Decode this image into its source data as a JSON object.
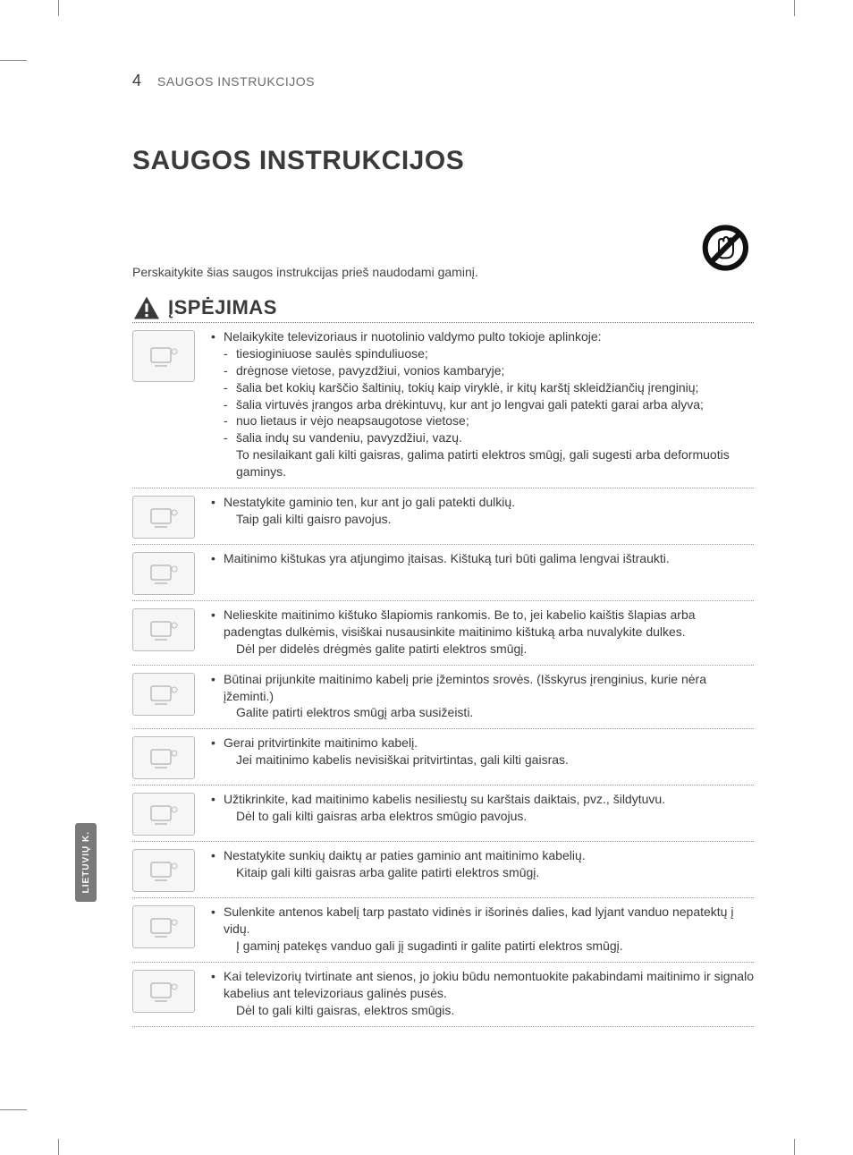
{
  "page_number": "4",
  "running_title": "SAUGOS INSTRUKCIJOS",
  "heading": "SAUGOS INSTRUKCIJOS",
  "intro": "Perskaitykite šias saugos instrukcijas prieš naudodami gaminį.",
  "warning_heading": "ĮSPĖJIMAS",
  "side_tab": "LIETUVIŲ K.",
  "colors": {
    "text": "#3a3a3a",
    "muted": "#6b6b6b",
    "dotted_rule": "#999999",
    "tab_bg": "#7a7a7a",
    "tab_text": "#ffffff",
    "background": "#ffffff"
  },
  "typography": {
    "h1_size_pt": 22,
    "h2_size_pt": 16,
    "body_size_pt": 10.5,
    "font_family": "Arial"
  },
  "items": [
    {
      "lead": "Nelaikykite televizoriaus ir nuotolinio valdymo pulto tokioje aplinkoje:",
      "sub": [
        "tiesioginiuose saulės spinduliuose;",
        "drėgnose vietose, pavyzdžiui, vonios kambaryje;",
        "šalia bet kokių karščio šaltinių, tokių kaip viryklė, ir kitų karštį skleidžiančių įrenginių;",
        "šalia virtuvės įrangos arba drėkintuvų, kur ant jo lengvai gali patekti garai arba alyva;",
        "nuo lietaus ir vėjo neapsaugotose vietose;",
        "šalia indų su vandeniu, pavyzdžiui, vazų."
      ],
      "tail": "To nesilaikant gali kilti gaisras, galima patirti elektros smūgį, gali sugesti arba deformuotis gaminys."
    },
    {
      "lead": "Nestatykite gaminio ten, kur ant jo gali patekti dulkių.",
      "tail": "Taip gali kilti gaisro pavojus."
    },
    {
      "lead": "Maitinimo kištukas yra atjungimo įtaisas. Kištuką turi būti galima lengvai ištraukti."
    },
    {
      "lead": "Nelieskite maitinimo kištuko šlapiomis rankomis. Be to, jei kabelio kaištis šlapias arba padengtas dulkėmis, visiškai nusausinkite maitinimo kištuką arba nuvalykite dulkes.",
      "tail": "Dėl per didelės drėgmės galite patirti elektros smūgį."
    },
    {
      "lead": "Būtinai prijunkite maitinimo kabelį prie įžemintos srovės. (Išskyrus įrenginius, kurie nėra įžeminti.)",
      "tail": "Galite patirti elektros smūgį arba susižeisti."
    },
    {
      "lead": "Gerai pritvirtinkite maitinimo kabelį.",
      "tail": "Jei maitinimo kabelis nevisiškai pritvirtintas, gali kilti gaisras."
    },
    {
      "lead": "Užtikrinkite, kad maitinimo kabelis nesiliestų su karštais daiktais, pvz., šildytuvu.",
      "tail": "Dėl to gali kilti gaisras arba elektros smūgio pavojus."
    },
    {
      "lead": "Nestatykite sunkių daiktų ar paties gaminio ant maitinimo kabelių.",
      "tail": "Kitaip gali kilti gaisras arba galite patirti elektros smūgį."
    },
    {
      "lead": "Sulenkite antenos kabelį tarp pastato vidinės ir išorinės dalies, kad lyjant vanduo nepatektų į vidų.",
      "tail": "Į gaminį patekęs vanduo gali jį sugadinti ir galite patirti elektros smūgį."
    },
    {
      "lead": "Kai televizorių tvirtinate ant sienos, jo jokiu būdu nemontuokite pakabindami maitinimo ir signalo kabelius ant televizoriaus galinės pusės.",
      "tail": "Dėl to gali kilti gaisras, elektros smūgis."
    }
  ]
}
